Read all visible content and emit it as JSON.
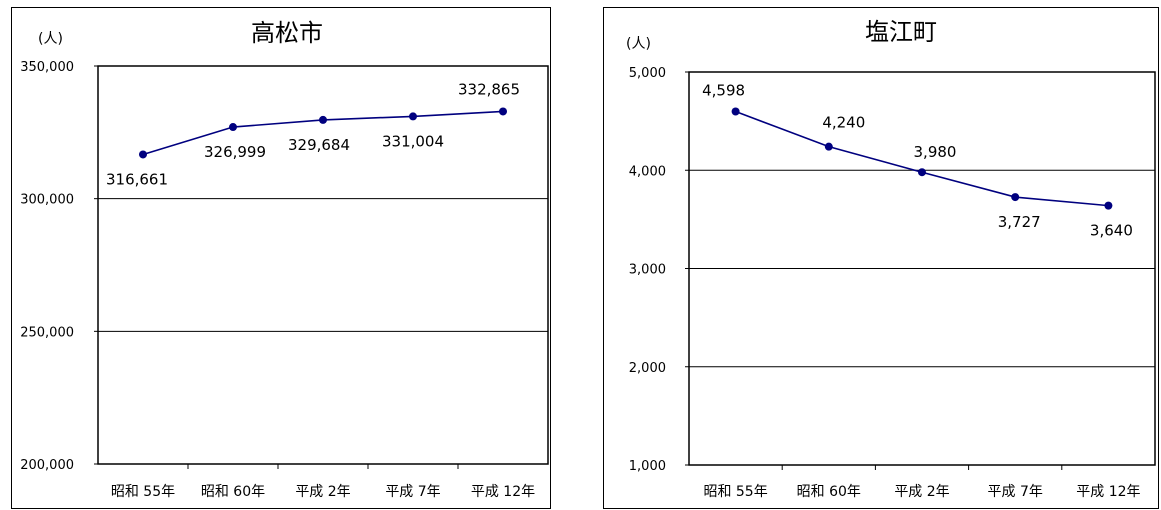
{
  "chart_data": [
    {
      "type": "line",
      "title": "高松市",
      "unit": "(人)",
      "categories": [
        "昭和 55年",
        "昭和 60年",
        "平成 2年",
        "平成 7年",
        "平成 12年"
      ],
      "values": [
        316661,
        326999,
        329684,
        331004,
        332865
      ],
      "data_labels": [
        "316,661",
        "326,999",
        "329,684",
        "331,004",
        "332,865"
      ],
      "ylim": [
        200000,
        350000
      ],
      "yticks": [
        200000,
        250000,
        300000,
        350000
      ],
      "ytick_labels": [
        "200,000",
        "250,000",
        "300,000",
        "350,000"
      ],
      "grid": true,
      "color": "#00007f"
    },
    {
      "type": "line",
      "title": "塩江町",
      "unit": "(人)",
      "categories": [
        "昭和 55年",
        "昭和 60年",
        "平成 2年",
        "平成 7年",
        "平成 12年"
      ],
      "values": [
        4598,
        4240,
        3980,
        3727,
        3640
      ],
      "data_labels": [
        "4,598",
        "4,240",
        "3,980",
        "3,727",
        "3,640"
      ],
      "ylim": [
        1000,
        5000
      ],
      "yticks": [
        1000,
        2000,
        3000,
        4000,
        5000
      ],
      "ytick_labels": [
        "1,000",
        "2,000",
        "3,000",
        "4,000",
        "5,000"
      ],
      "grid": true,
      "color": "#00007f"
    }
  ]
}
